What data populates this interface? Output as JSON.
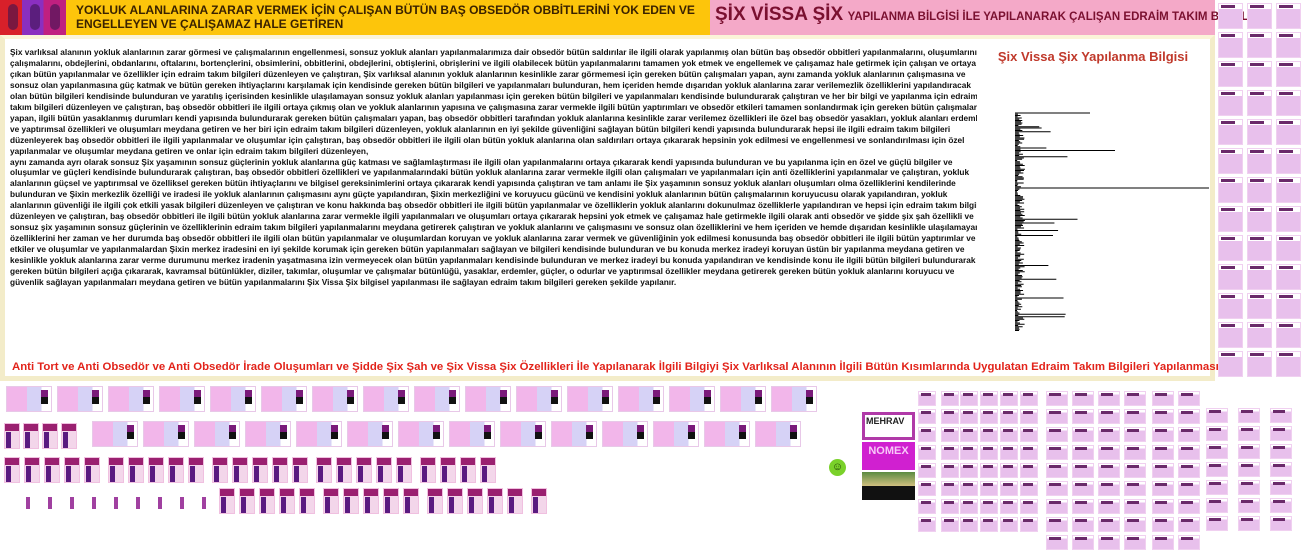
{
  "header": {
    "left_title": "YOKLUK ALANLARINA ZARAR VERMEK İÇİN ÇALIŞAN BÜTÜN BAŞ OBSEDÖR OBBİTLERİNİ YOK EDEN VE ENGELLEYEN VE ÇALIŞAMAZ HALE GETİREN",
    "right_title_big": "ŞİX VİSSA ŞİX",
    "right_title_small": "YAPILANMA BİLGİSİ İLE YAPILANARAK ÇALIŞAN EDRAİM TAKIM BİLGİLERİ"
  },
  "body": {
    "paragraphs": [
      "Şix varlıksal alanının yokluk alanlarının zarar görmesi ve çalışmalarının engellenmesi, sonsuz yokluk alanları yapılanmalarımıza dair obsedör bütün saldırılar ile ilgili olarak yapılanmış olan bütün baş obsedör obbitleri yapılanmalarını, oluşumlarını, çalışmalarını, obdejlerini, obdanlarını, oftalarını, bortençlerini, obsimlerini, obbitlerini, obdejlerini, obtişlerini, obrişlerini ve ilgili olabilecek bütün yapılanmalarını tamamen yok etmek ve engellemek ve çalışamaz hale getirmek için çalışan ve ortaya çıkan bütün yapılanmalar ve özellikler için edraim takım bilgileri düzenleyen ve çalıştıran, Şix varlıksal alanının yokluk alanlarının kesinlikle zarar görmemesi için gereken bütün çalışmaları yapan, aynı zamanda yokluk alanlarının çalışmasına ve sonsuz olan yapılanmasına güç katmak ve bütün gereken ihtiyaçlarını karşılamak için kendisinde gereken bütün bilgileri ve yapılanmaları bulunduran, hem içeriden hemde dışarıdan yokluk alanlarına zarar verilemezlik özelliklerini yapılandıracak olan bütün bilgileri kendisinde bulunduran ve yaratılış içerisinden kesinlikle ulaşılamayan sonsuz yokluk alanları yapılanması için gereken bütün bilgileri ve yapılanmaları kendisinde bulundurarak çalıştıran ve her bir bilgi ve yapılanma için edraim takım bilgileri düzenleyen ve çalıştıran, baş obsedör obbitleri ile ilgili ortaya çıkmış olan ve yokluk alanlarının yapısına ve çalışmasına zarar vermekle ilgili bütün yaptırımları ve obsedör etkileri tamamen sonlandırmak için gereken bütün çalışmaları yapan, ilgili bütün yasaklanmış durumları kendi yapısında bulundurarak gereken bütün çalışmaları yapan, baş obsedör obbitleri tarafından yokluk alanlarına kesinlikle zarar verilemez özellikleri ile özel baş obsedör yasakları, yokluk alanları erdemleri ve yaptırımsal özellikleri ve oluşumları meydana getiren ve her biri için edraim takım bilgileri düzenleyen, yokluk alanlarının en iyi şekilde güvenliğini sağlayan bütün bilgileri kendi yapısında bulundurarak hepsi ile ilgili edraim takım bilgileri düzenleyerek baş obsedör obbitleri ile ilgili yapılanmalar ve oluşumlar için çalıştıran, baş obsedör obbitleri ile ilgili olan bütün yokluk alanlarına olan saldırıları ortaya çıkararak hepsinin yok edilmesi ve engellenmesi ve sonlandırılması için özel yapılanmalar ve oluşumlar meydana getiren ve onlar için edraim takım bilgileri düzenleyen,",
      " aynı zamanda ayrı olarak sonsuz Şix yaşamının sonsuz güçlerinin yokluk alanlarına güç katması ve sağlamlaştırması ile ilgili olan yapılanmalarını ortaya çıkararak kendi yapısında bulunduran ve bu yapılanma için en özel ve güçlü bilgiler ve oluşumlar ve güçleri kendisinde bulundurarak çalıştıran, baş obsedör obbitleri özellikleri ve yapılanmalarındaki bütün yokluk alanlarına zarar vermekle ilgili olan çalışmaları ve yapılanmaları için anti özelliklerini yapılanmalar ve çalıştıran, yokluk alanlarının güçsel ve yaptırımsal ve özelliksel gereken bütün ihtiyaçlarını ve bilgisel gereksinimlerini ortaya çıkararak kendi yapısında çalıştıran ve tam anlamı ile Şix yaşamının sonsuz yokluk alanları oluşumları olma özelliklerini kendilerinde bulunduran ve Şixin merkezlik özelliği ve iradesi ile yokluk alanlarının çalışmasını aynı güçte yapılandıran, Şixin merkezliğini ve koruyucu gücünü ve kendisini yokluk alanlarının bütün çalışmalarının koruyucusu olarak yapılandıran, yokluk alanlarının  güvenliği ile ilgili çok etkili yasak bilgileri düzenleyen ve çalıştıran ve konu hakkında baş obsedör obbitleri ile ilgili bütün yapılanmalar ve özelliklerin yokluk alanlarını dokunulmaz özelliklerle yapılandıran ve hepsi için edraim takım bilgileri düzenleyen ve çalıştıran, baş obsedör obbitleri ile ilgili bütün yokluk alanlarına zarar vermekle ilgili yapılanmaları ve oluşumları ortaya  çıkararak hepsini yok etmek ve çalışamaz hale getirmekle ilgili olarak anti obsedör ve şidde şix şah özellikli ve sonsuz şix yaşamının sonsuz güçlerinin ve özelliklerinin edraim takım bilgileri yapılanmalarını meydana getirerek çalıştıran ve yokluk alanlarını ve çalışmasını ve sonsuz olan özelliklerini ve hem içeriden ve hemde dışarıdan kesinlikle ulaşılamayan özelliklerini her zaman ve her durumda baş obsedör obbitleri ile ilgili olan bütün yapılanmalar ve oluşumlardan koruyan ve yokluk alanlarına zarar vermek ve güvenliğinin yok edilmesi konusunda baş obsedör obbitleri ile ilgili bütün yaptırımlar ve etkiler ve oluşumlar ve yapılanmalardan Şixin merkez iradesini en iyi şekilde korumak için gereken bütün yapılanmaları sağlayan ve bilgileri kendisinde bulunduran ve bu konuda merkez iradeyi koruyan üstün bir yapılanma meydana getiren ve kesinlikle yokluk alanlarına zarar verme durumunu merkez iradenin yaşatmasına izin vermeyecek olan bütün yapılanmaları kendisinde bulunduran ve merkez iradeyi bu konuda yapılandıran ve kendisinde konu ile ilgili bütün bilgileri bulundurarak ve gereken bütün bilgileri açığa çıkararak, kavramsal bütünlükler, diziler, takımlar, oluşumlar ve çalışmalar bütünlüğü, yasaklar, erdemler, güçler, o odurlar ve yaptırımsal özellikler meydana getirerek gereken bütün yokluk alanlarını koruyucu ve güvenlik sağlayan yapılanmaları meydana getiren ve bütün yapılanmalarını Şix Vissa Şix bilgisel yapılanması ile sağlayan edraim takım bilgileri gereken şekilde yapılanır."
    ],
    "footer_line": "Anti Tort ve Anti Obsedör ve Anti Obsedör İrade Oluşumları ve Şidde Şix Şah ve Şix Vissa Şix Özellikleri İle Yapılanarak İlgili Bilgiyi Şix Varlıksal Alanının İlgili Bütün Kısımlarında Uygulatan Edraim Takım Bilgileri Yapılanması"
  },
  "chart": {
    "title": "Şix Vissa Şix Yapılanma Bilgisi"
  },
  "ads": [
    {
      "label": "MEHRAV",
      "color": "#b03aa8"
    },
    {
      "label": "NOMEX",
      "color": "#d020d0"
    },
    {
      "label": "",
      "color": "#111111"
    }
  ],
  "colors": {
    "yellow": "#fdc50b",
    "pink": "#f4a9c8",
    "red_text": "#e2231a",
    "chart_title": "#c0392b"
  }
}
